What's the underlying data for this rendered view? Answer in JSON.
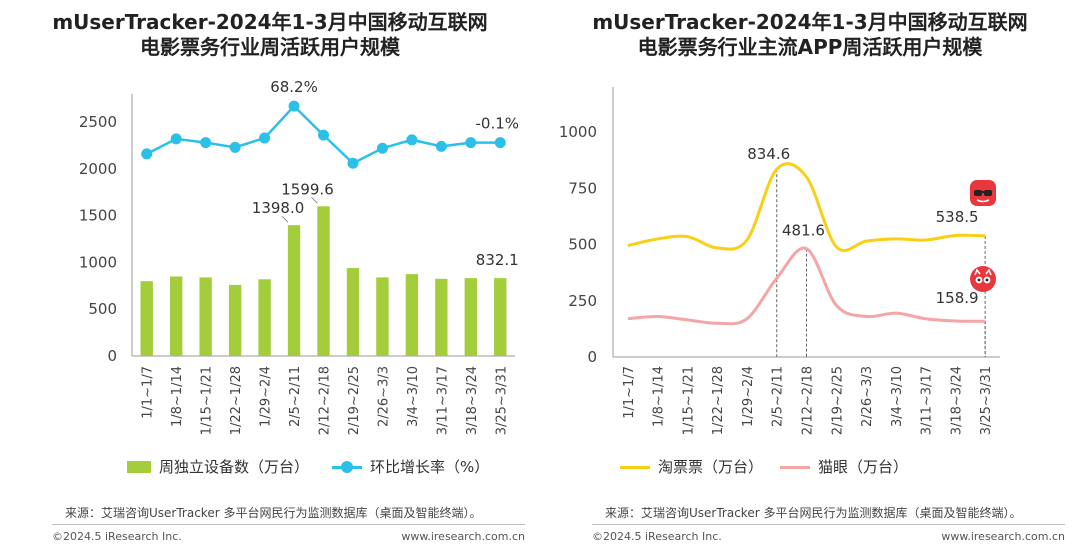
{
  "left": {
    "title_line1": "mUserTracker-2024年1-3月中国移动互联网",
    "title_line2": "电影票务行业周活跃用户规模",
    "legend": {
      "bar_label": "周独立设备数（万台）",
      "line_label": "环比增长率（%）"
    },
    "source": "来源：艾瑞咨询UserTracker 多平台网民行为监测数据库（桌面及智能终端）。",
    "copyright": "©2024.5 iResearch Inc.",
    "website": "www.iresearch.com.cn",
    "colors": {
      "bar": "#a3cd3b",
      "line": "#2bc0ea",
      "axis": "#999999",
      "text": "#333333"
    }
  },
  "right": {
    "title_line1": "mUserTracker-2024年1-3月中国移动互联网",
    "title_line2": "电影票务行业主流APP周活跃用户规模",
    "legend": {
      "taopiaopiao_label": "淘票票（万台）",
      "maoyan_label": "猫眼（万台）"
    },
    "source": "来源：艾瑞咨询UserTracker 多平台网民行为监测数据库（桌面及智能终端）。",
    "copyright": "©2024.5 iResearch Inc.",
    "website": "www.iresearch.com.cn",
    "icons": {
      "taopiaopiao": "taopiaopiao-app-icon",
      "maoyan": "maoyan-app-icon"
    },
    "colors": {
      "taopiaopiao": "#f9cf16",
      "maoyan": "#f4a5a5",
      "axis": "#999999"
    }
  },
  "chart_data": [
    {
      "type": "bar",
      "title": "mUserTracker-2024年1-3月中国移动互联网电影票务行业周活跃用户规模",
      "categories": [
        "1/1~1/7",
        "1/8~1/14",
        "1/15~1/21",
        "1/22~1/28",
        "1/29~2/4",
        "2/5~2/11",
        "2/12~2/18",
        "2/19~2/25",
        "2/26~3/3",
        "3/4~3/10",
        "3/11~3/17",
        "3/18~3/24",
        "3/25~3/31"
      ],
      "series": [
        {
          "name": "周独立设备数（万台）",
          "type": "bar",
          "values": [
            800,
            850,
            840,
            760,
            820,
            1398.0,
            1599.6,
            940,
            840,
            875,
            825,
            832,
            832.1
          ]
        },
        {
          "name": "环比增长率（%）",
          "type": "line",
          "marker_values": [
            2160,
            2320,
            2280,
            2230,
            2330,
            2670,
            2360,
            2060,
            2220,
            2310,
            2240,
            2280,
            2280
          ]
        }
      ],
      "yticks": [
        "0",
        "500",
        "1000",
        "1500",
        "2000",
        "2500"
      ],
      "ylim": [
        0,
        2800
      ],
      "bar_labels": [
        {
          "index": 5,
          "text": "1398.0"
        },
        {
          "index": 6,
          "text": "1599.6"
        },
        {
          "index": 12,
          "text": "832.1"
        }
      ],
      "line_labels": [
        {
          "index": 5,
          "text": "68.2%"
        },
        {
          "index": 12,
          "text": "-0.1%"
        }
      ]
    },
    {
      "type": "line",
      "title": "mUserTracker-2024年1-3月中国移动互联网电影票务行业主流APP周活跃用户规模",
      "categories": [
        "1/1~1/7",
        "1/8~1/14",
        "1/15~1/21",
        "1/22~1/28",
        "1/29~2/4",
        "2/5~2/11",
        "2/12~2/18",
        "2/19~2/25",
        "2/26~3/3",
        "3/4~3/10",
        "3/11~3/17",
        "3/18~3/24",
        "3/25~3/31"
      ],
      "series": [
        {
          "name": "淘票票（万台）",
          "values": [
            495,
            525,
            535,
            485,
            520,
            834.6,
            800,
            490,
            515,
            525,
            520,
            540,
            538.5
          ]
        },
        {
          "name": "猫眼（万台）",
          "values": [
            170,
            180,
            165,
            150,
            170,
            350,
            481.6,
            230,
            180,
            195,
            170,
            160,
            158.9
          ]
        }
      ],
      "yticks": [
        "0",
        "250",
        "500",
        "750",
        "1000"
      ],
      "ylim": [
        0,
        1200
      ],
      "point_labels": [
        {
          "series": 0,
          "index": 5,
          "text": "834.6"
        },
        {
          "series": 0,
          "index": 12,
          "text": "538.5"
        },
        {
          "series": 1,
          "index": 6,
          "text": "481.6"
        },
        {
          "series": 1,
          "index": 12,
          "text": "158.9"
        }
      ]
    }
  ]
}
